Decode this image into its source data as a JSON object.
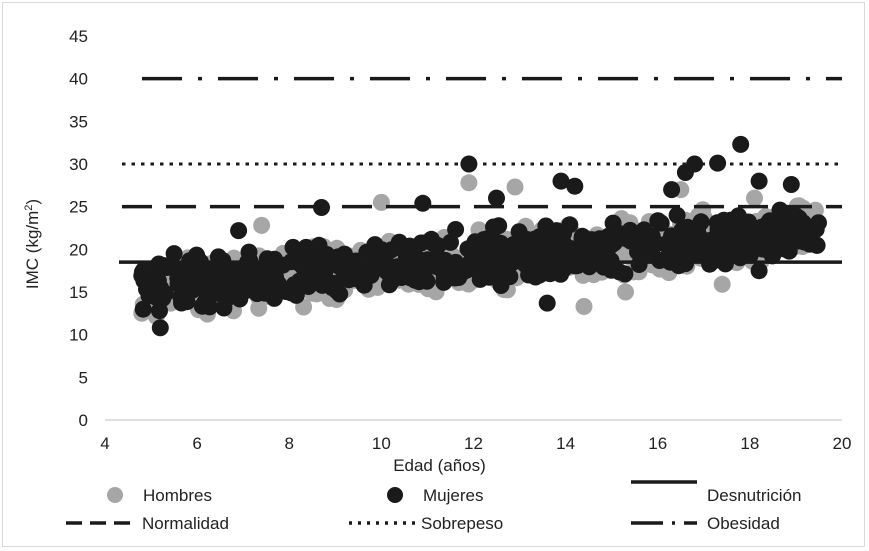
{
  "chart_data": {
    "type": "scatter",
    "title": "",
    "xlabel": "Edad (años)",
    "ylabel_main": "IMC (kg/m",
    "ylabel_sup": "2",
    "ylabel_close": ")",
    "xlim": [
      4,
      20
    ],
    "ylim": [
      0,
      45
    ],
    "x_ticks": [
      "4",
      "6",
      "8",
      "10",
      "12",
      "14",
      "16",
      "18",
      "20"
    ],
    "y_ticks": [
      "0",
      "5",
      "10",
      "15",
      "20",
      "25",
      "30",
      "35",
      "40",
      "45"
    ],
    "grid": false,
    "legend_position": "bottom",
    "series": [
      {
        "name": "Hombres",
        "kind": "scatter",
        "color": "#a6a6a6",
        "trend": {
          "x0": 4.8,
          "y0": 15.0,
          "x1": 19.5,
          "y1": 22.5
        },
        "spread": 2.6
      },
      {
        "name": "Mujeres",
        "kind": "scatter",
        "color": "#1a1a1a",
        "trend": {
          "x0": 4.8,
          "y0": 15.5,
          "x1": 19.5,
          "y1": 22.0
        },
        "spread": 2.6
      }
    ],
    "reference_lines": [
      {
        "name": "Desnutrición",
        "y": 18.5,
        "style": "solid",
        "color": "#1a1a1a"
      },
      {
        "name": "Normalidad",
        "y": 25,
        "style": "dashed",
        "color": "#1a1a1a"
      },
      {
        "name": "Sobrepeso",
        "y": 30,
        "style": "dotted",
        "color": "#1a1a1a"
      },
      {
        "name": "Obesidad",
        "y": 40,
        "style": "long-dash-dot",
        "color": "#1a1a1a"
      }
    ],
    "highlighted_points": {
      "Hombres": [
        [
          4.8,
          12.5
        ],
        [
          5.8,
          19.0
        ],
        [
          7.4,
          22.8
        ],
        [
          10.0,
          25.5
        ],
        [
          11.9,
          27.8
        ],
        [
          12.9,
          27.3
        ],
        [
          14.4,
          13.3
        ],
        [
          15.3,
          15.0
        ],
        [
          16.5,
          27.0
        ],
        [
          17.4,
          15.9
        ],
        [
          18.1,
          26.0
        ],
        [
          19.2,
          24.0
        ],
        [
          19.4,
          23.0
        ]
      ],
      "Mujeres": [
        [
          4.8,
          16.9
        ],
        [
          5.2,
          10.8
        ],
        [
          5.5,
          19.5
        ],
        [
          6.9,
          22.2
        ],
        [
          8.7,
          24.9
        ],
        [
          10.9,
          25.4
        ],
        [
          11.9,
          30.0
        ],
        [
          12.5,
          26.0
        ],
        [
          13.6,
          13.7
        ],
        [
          13.9,
          28.0
        ],
        [
          14.2,
          27.4
        ],
        [
          16.3,
          27.0
        ],
        [
          16.6,
          29.0
        ],
        [
          16.8,
          30.0
        ],
        [
          17.3,
          30.1
        ],
        [
          17.8,
          32.3
        ],
        [
          18.2,
          28.0
        ],
        [
          18.2,
          17.5
        ],
        [
          18.9,
          27.6
        ],
        [
          19.3,
          20.6
        ]
      ]
    }
  }
}
